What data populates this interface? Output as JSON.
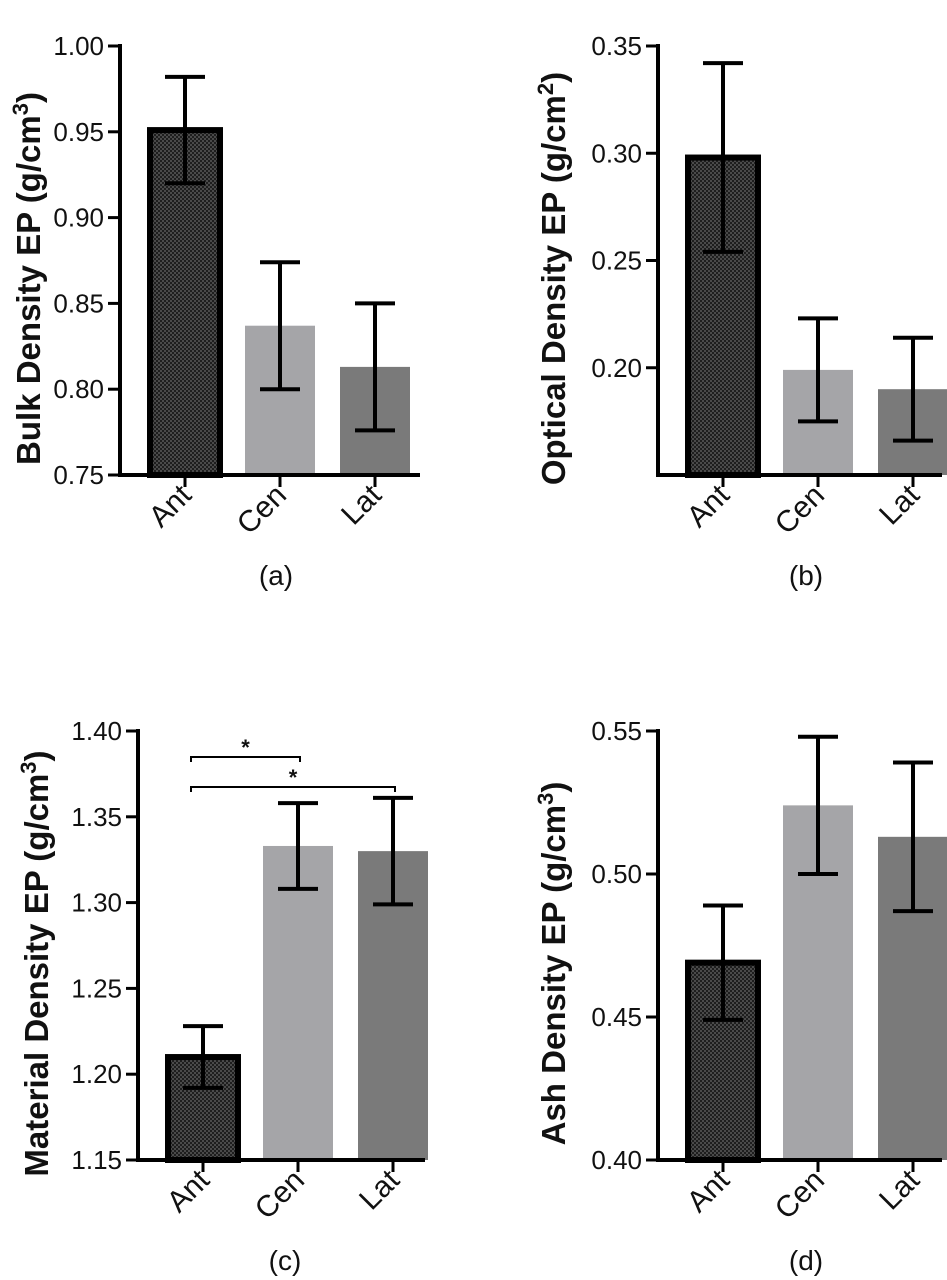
{
  "chart_data": [
    {
      "type": "bar",
      "panel_label": "(a)",
      "ylabel": "Bulk Density EP (g/cm",
      "ylabel_sup": "3",
      "ylabel_close": ")",
      "categories": [
        "Ant",
        "Cen",
        "Lat"
      ],
      "values": [
        0.951,
        0.837,
        0.813
      ],
      "errors": [
        0.031,
        0.037,
        0.037
      ],
      "ylim": [
        0.75,
        1.0
      ],
      "yticks": [
        0.75,
        0.8,
        0.85,
        0.9,
        0.95,
        1.0
      ],
      "ytick_labels": [
        "0.75",
        "0.80",
        "0.85",
        "0.90",
        "0.95",
        "1.00"
      ],
      "colors": [
        "#3a3a3a",
        "#a5a5a8",
        "#7a7a7a"
      ],
      "significance": []
    },
    {
      "type": "bar",
      "panel_label": "(b)",
      "ylabel": "Optical Density EP (g/cm",
      "ylabel_sup": "2",
      "ylabel_close": ")",
      "categories": [
        "Ant",
        "Cen",
        "Lat"
      ],
      "values": [
        0.298,
        0.199,
        0.19
      ],
      "errors": [
        0.044,
        0.024,
        0.024
      ],
      "ylim": [
        0.15,
        0.35
      ],
      "yticks": [
        0.2,
        0.25,
        0.3,
        0.35
      ],
      "ytick_labels": [
        "0.20",
        "0.25",
        "0.30",
        "0.35"
      ],
      "colors": [
        "#3a3a3a",
        "#a5a5a8",
        "#7a7a7a"
      ],
      "significance": []
    },
    {
      "type": "bar",
      "panel_label": "(c)",
      "ylabel": "Material Density EP (g/cm",
      "ylabel_sup": "3",
      "ylabel_close": ")",
      "categories": [
        "Ant",
        "Cen",
        "Lat"
      ],
      "values": [
        1.21,
        1.333,
        1.33
      ],
      "errors": [
        0.018,
        0.025,
        0.031
      ],
      "ylim": [
        1.15,
        1.4
      ],
      "yticks": [
        1.15,
        1.2,
        1.25,
        1.3,
        1.35,
        1.4
      ],
      "ytick_labels": [
        "1.15",
        "1.20",
        "1.25",
        "1.30",
        "1.35",
        "1.40"
      ],
      "colors": [
        "#3a3a3a",
        "#a5a5a8",
        "#7a7a7a"
      ],
      "significance": [
        {
          "from": "Ant",
          "to": "Cen",
          "label": "*"
        },
        {
          "from": "Ant",
          "to": "Lat",
          "label": "*"
        }
      ]
    },
    {
      "type": "bar",
      "panel_label": "(d)",
      "ylabel": "Ash Density EP (g/cm",
      "ylabel_sup": "3",
      "ylabel_close": ")",
      "categories": [
        "Ant",
        "Cen",
        "Lat"
      ],
      "values": [
        0.469,
        0.524,
        0.513
      ],
      "errors": [
        0.02,
        0.024,
        0.026
      ],
      "ylim": [
        0.4,
        0.55
      ],
      "yticks": [
        0.4,
        0.45,
        0.5,
        0.55
      ],
      "ytick_labels": [
        "0.40",
        "0.45",
        "0.50",
        "0.55"
      ],
      "colors": [
        "#3a3a3a",
        "#a5a5a8",
        "#7a7a7a"
      ],
      "significance": []
    }
  ]
}
